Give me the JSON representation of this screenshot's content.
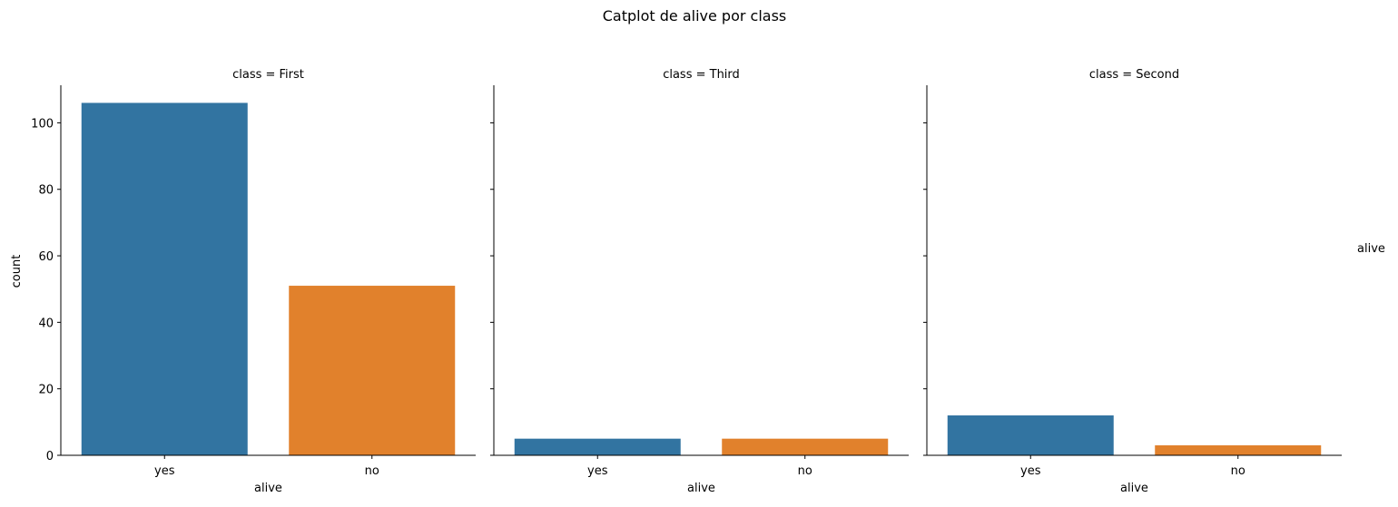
{
  "chart_data": {
    "type": "bar",
    "title": "Catplot de alive por class",
    "xlabel": "alive",
    "ylabel": "count",
    "legend_title": "alive",
    "categories": [
      "yes",
      "no"
    ],
    "colors": {
      "yes": "#3274a1",
      "no": "#e1812c"
    },
    "ylim": [
      0,
      111.3
    ],
    "yticks": [
      0,
      20,
      40,
      60,
      80,
      100
    ],
    "grid": false,
    "legend_placement": "right",
    "facets": [
      {
        "title": "class = First",
        "values": [
          106,
          51
        ]
      },
      {
        "title": "class = Third",
        "values": [
          5,
          5
        ]
      },
      {
        "title": "class = Second",
        "values": [
          12,
          3
        ]
      }
    ]
  }
}
